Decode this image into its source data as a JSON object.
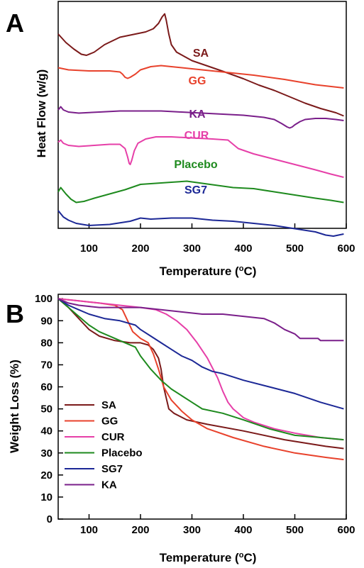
{
  "chart_data": [
    {
      "panel": "A",
      "type": "line",
      "xlabel": "Temperature (°C)",
      "ylabel": "Heat Flow (w/g)",
      "xlim": [
        40,
        600
      ],
      "xticks": [
        100,
        200,
        300,
        400,
        500,
        600
      ],
      "y_ticks_shown": false,
      "grid": false,
      "legend": "inline labels",
      "series": [
        {
          "name": "SA",
          "color": "#7b1a1a",
          "x": [
            40,
            55,
            70,
            85,
            95,
            110,
            130,
            160,
            190,
            210,
            225,
            235,
            242,
            247,
            250,
            255,
            260,
            270,
            285,
            300,
            330,
            360,
            400,
            430,
            460,
            490,
            520,
            550,
            580,
            595
          ],
          "y": [
            0.8,
            0.72,
            0.66,
            0.61,
            0.6,
            0.63,
            0.7,
            0.77,
            0.8,
            0.82,
            0.85,
            0.9,
            0.96,
            0.99,
            0.93,
            0.8,
            0.7,
            0.63,
            0.59,
            0.55,
            0.5,
            0.45,
            0.38,
            0.32,
            0.27,
            0.21,
            0.15,
            0.1,
            0.06,
            0.03
          ]
        },
        {
          "name": "GG",
          "color": "#e8422c",
          "x": [
            40,
            60,
            100,
            140,
            160,
            165,
            170,
            175,
            180,
            190,
            200,
            220,
            240,
            260,
            300,
            360,
            420,
            480,
            540,
            595
          ],
          "y": [
            0.57,
            0.55,
            0.54,
            0.54,
            0.53,
            0.51,
            0.48,
            0.47,
            0.48,
            0.51,
            0.55,
            0.58,
            0.59,
            0.58,
            0.56,
            0.53,
            0.5,
            0.46,
            0.41,
            0.38
          ]
        },
        {
          "name": "KA",
          "color": "#7a1f8a",
          "x": [
            40,
            45,
            50,
            60,
            80,
            120,
            160,
            200,
            240,
            280,
            320,
            360,
            400,
            440,
            460,
            475,
            485,
            490,
            495,
            500,
            510,
            520,
            540,
            560,
            580,
            595
          ],
          "y": [
            0.4,
            0.43,
            0.4,
            0.38,
            0.37,
            0.38,
            0.39,
            0.39,
            0.39,
            0.38,
            0.37,
            0.36,
            0.35,
            0.33,
            0.31,
            0.27,
            0.24,
            0.23,
            0.24,
            0.26,
            0.29,
            0.31,
            0.32,
            0.32,
            0.31,
            0.3
          ]
        },
        {
          "name": "CUR",
          "color": "#e63fa8",
          "x": [
            40,
            45,
            50,
            60,
            80,
            110,
            140,
            160,
            170,
            175,
            178,
            180,
            183,
            188,
            195,
            210,
            230,
            260,
            300,
            340,
            370,
            380,
            390,
            420,
            460,
            500,
            540,
            570,
            595
          ],
          "y": [
            0.31,
            0.33,
            0.3,
            0.28,
            0.27,
            0.28,
            0.29,
            0.29,
            0.25,
            0.17,
            0.11,
            0.1,
            0.14,
            0.23,
            0.3,
            0.34,
            0.36,
            0.36,
            0.35,
            0.34,
            0.33,
            0.29,
            0.25,
            0.2,
            0.15,
            0.1,
            0.05,
            0.01,
            -0.02
          ]
        },
        {
          "name": "Placebo",
          "color": "#1e8a1e",
          "x": [
            40,
            45,
            55,
            65,
            75,
            90,
            110,
            140,
            170,
            200,
            230,
            260,
            290,
            320,
            350,
            380,
            420,
            460,
            500,
            540,
            570,
            595
          ],
          "y": [
            0.09,
            0.13,
            0.07,
            0.02,
            -0.01,
            0.0,
            0.03,
            0.07,
            0.11,
            0.16,
            0.17,
            0.18,
            0.19,
            0.17,
            0.15,
            0.13,
            0.12,
            0.09,
            0.06,
            0.03,
            0.01,
            -0.01
          ]
        },
        {
          "name": "SG7",
          "color": "#1c2896",
          "x": [
            40,
            50,
            60,
            75,
            100,
            140,
            180,
            200,
            220,
            260,
            300,
            340,
            380,
            420,
            460,
            500,
            540,
            560,
            575,
            585,
            595
          ],
          "y": [
            -0.02,
            -0.08,
            -0.11,
            -0.14,
            -0.16,
            -0.15,
            -0.12,
            -0.09,
            -0.1,
            -0.09,
            -0.09,
            -0.11,
            -0.12,
            -0.14,
            -0.16,
            -0.19,
            -0.22,
            -0.25,
            -0.26,
            -0.25,
            -0.24
          ]
        }
      ]
    },
    {
      "panel": "B",
      "type": "line",
      "xlabel": "Temperature (°C)",
      "ylabel": "Weight Loss (%)",
      "xlim": [
        40,
        600
      ],
      "ylim": [
        0,
        102
      ],
      "xticks": [
        100,
        200,
        300,
        400,
        500,
        600
      ],
      "yticks": [
        0,
        10,
        20,
        30,
        40,
        50,
        60,
        70,
        80,
        90,
        100
      ],
      "grid": false,
      "legend": "bottom-left",
      "series": [
        {
          "name": "SA",
          "color": "#7b1a1a",
          "x": [
            40,
            60,
            80,
            100,
            120,
            150,
            180,
            200,
            215,
            225,
            235,
            240,
            245,
            255,
            265,
            290,
            330,
            400,
            480,
            560,
            595
          ],
          "y": [
            100,
            96,
            91,
            86,
            83,
            81,
            80,
            80,
            79,
            77,
            73,
            68,
            60,
            50,
            48,
            45,
            43,
            40,
            36,
            33,
            32
          ]
        },
        {
          "name": "GG",
          "color": "#e8422c",
          "x": [
            40,
            80,
            120,
            150,
            165,
            175,
            185,
            200,
            215,
            225,
            235,
            245,
            260,
            280,
            300,
            330,
            380,
            440,
            500,
            560,
            595
          ],
          "y": [
            100,
            99,
            98,
            97,
            95,
            90,
            85,
            82,
            80,
            75,
            68,
            60,
            54,
            49,
            45,
            41,
            37,
            33,
            30,
            28,
            27
          ]
        },
        {
          "name": "CUR",
          "color": "#e63fa8",
          "x": [
            40,
            80,
            120,
            160,
            200,
            230,
            250,
            270,
            290,
            310,
            330,
            350,
            360,
            370,
            380,
            390,
            400,
            420,
            460,
            500,
            550,
            595
          ],
          "y": [
            100,
            99,
            98,
            97,
            96,
            95,
            93,
            90,
            86,
            80,
            73,
            64,
            58,
            53,
            50,
            48,
            46,
            44,
            41,
            39,
            37,
            36
          ]
        },
        {
          "name": "Placebo",
          "color": "#1e8a1e",
          "x": [
            40,
            60,
            80,
            100,
            120,
            150,
            170,
            190,
            200,
            220,
            240,
            260,
            280,
            300,
            320,
            360,
            400,
            450,
            500,
            550,
            595
          ],
          "y": [
            100,
            96,
            92,
            88,
            85,
            82,
            80,
            78,
            74,
            68,
            63,
            59,
            56,
            53,
            50,
            48,
            45,
            41,
            38,
            37,
            36
          ]
        },
        {
          "name": "SG7",
          "color": "#1c2896",
          "x": [
            40,
            60,
            80,
            100,
            130,
            160,
            190,
            200,
            220,
            240,
            260,
            280,
            300,
            320,
            340,
            360,
            400,
            450,
            500,
            550,
            595
          ],
          "y": [
            100,
            97,
            95,
            93,
            91,
            90,
            88,
            86,
            83,
            80,
            77,
            74,
            72,
            69,
            67,
            66,
            63,
            60,
            57,
            53,
            50
          ]
        },
        {
          "name": "KA",
          "color": "#7a1f8a",
          "x": [
            40,
            60,
            80,
            120,
            160,
            200,
            240,
            280,
            320,
            360,
            400,
            440,
            450,
            460,
            480,
            500,
            510,
            530,
            545,
            550,
            560,
            580,
            595
          ],
          "y": [
            100,
            98,
            97,
            96,
            96,
            96,
            95,
            94,
            93,
            93,
            92,
            91,
            90,
            89,
            86,
            84,
            82,
            82,
            82,
            81,
            81,
            81,
            81
          ]
        }
      ]
    }
  ]
}
